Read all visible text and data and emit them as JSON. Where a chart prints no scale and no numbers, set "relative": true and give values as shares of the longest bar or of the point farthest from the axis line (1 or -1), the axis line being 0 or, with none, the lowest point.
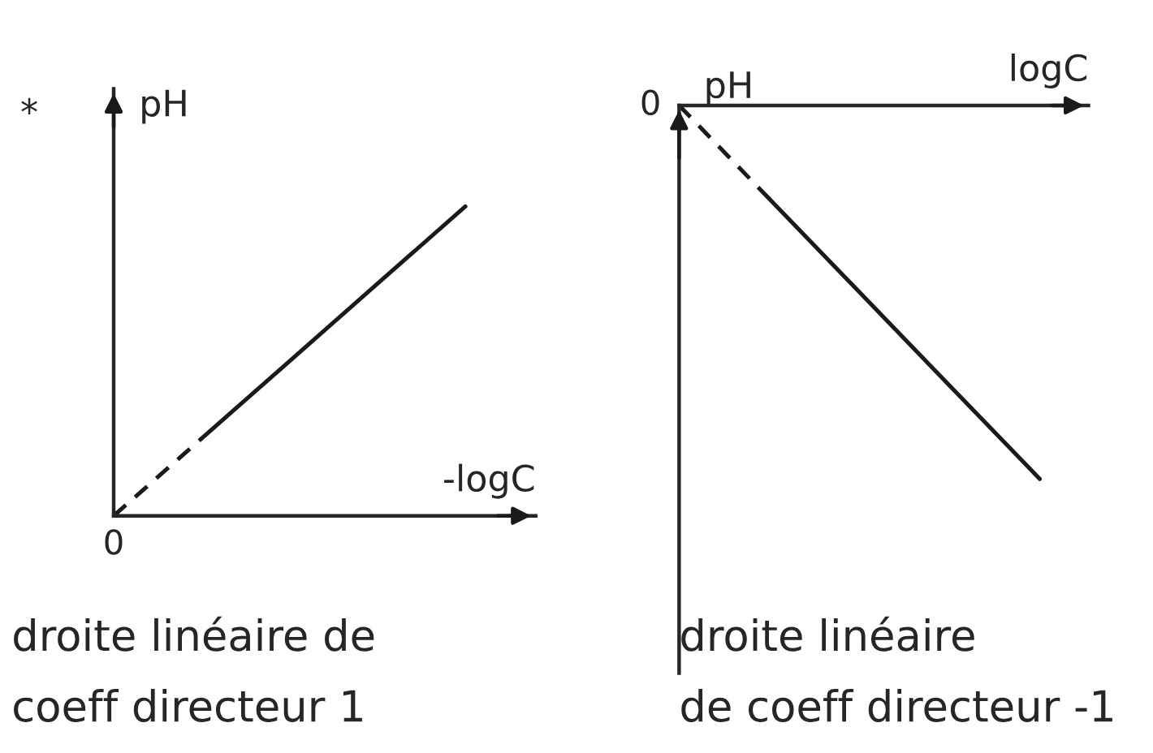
{
  "chart_data": [
    {
      "type": "line",
      "relative": true,
      "xlabel": "-logC",
      "ylabel": "pH",
      "categories": [
        null,
        null,
        null,
        null,
        null
      ],
      "legend": false,
      "marker": "none",
      "series": [
        {
          "color": "#1a1a1a",
          "line_style": "dashed",
          "values": [
            0,
            0.25,
            null,
            null,
            null
          ]
        },
        {
          "color": "#1a1a1a",
          "line_style": "solid",
          "values": [
            null,
            0.25,
            0.5,
            0.75,
            1
          ]
        }
      ],
      "annotations": [
        "*",
        "0",
        "droite linéaire de\ncoeff directeur 1"
      ]
    },
    {
      "type": "line",
      "relative": true,
      "xlabel": "logC",
      "ylabel": "pH",
      "categories": [
        null,
        null,
        null,
        null,
        null
      ],
      "legend": false,
      "marker": "none",
      "series": [
        {
          "color": "#1a1a1a",
          "line_style": "dashed",
          "values": [
            0,
            -0.25,
            null,
            null,
            null
          ]
        },
        {
          "color": "#1a1a1a",
          "line_style": "solid",
          "values": [
            null,
            -0.25,
            -0.5,
            -0.75,
            -1
          ]
        }
      ],
      "annotations": [
        "0",
        "droite linéaire\nde coeff directeur -1"
      ]
    }
  ]
}
